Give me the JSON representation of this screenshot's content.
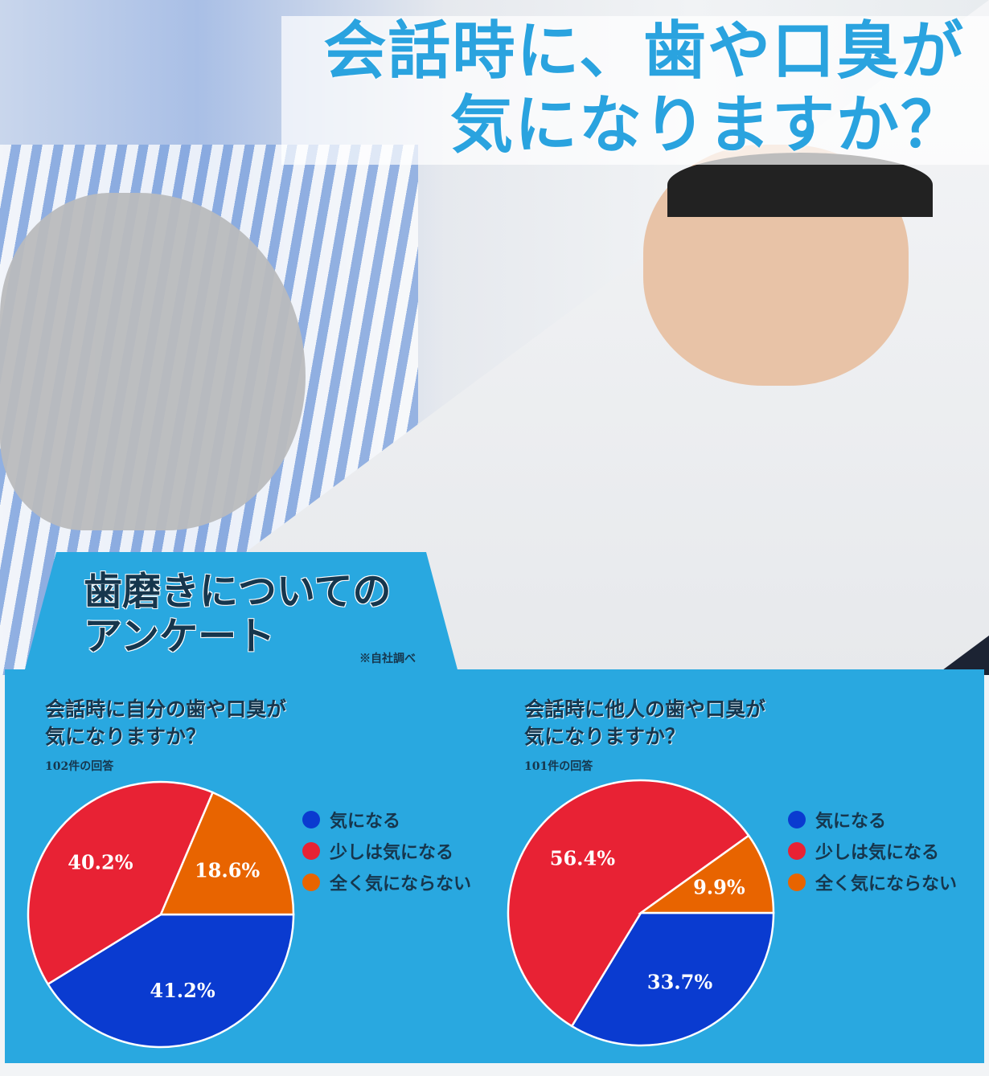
{
  "headline": {
    "line1": "会話時に、歯や口臭が",
    "line2": "気になりますか？"
  },
  "survey": {
    "title_line1": "歯磨きについての",
    "title_line2": "アンケート",
    "source": "※自社調べ"
  },
  "colors": {
    "blue": "#0a3bd0",
    "red": "#e82234",
    "orange": "#e86400",
    "panel": "#29a8e0",
    "title": "#2aa3df"
  },
  "legend": [
    "気になる",
    "少しは気になる",
    "全く気にならない"
  ],
  "chart_data": [
    {
      "type": "pie",
      "title_line1": "会話時に自分の歯や口臭が",
      "title_line2": "気になりますか？",
      "subtitle": "102件の回答",
      "categories": [
        "気になる",
        "少しは気になる",
        "全く気にならない"
      ],
      "values": [
        41.2,
        40.2,
        18.6
      ],
      "labels": [
        "41.2%",
        "40.2%",
        "18.6%"
      ],
      "legend_placement": "right"
    },
    {
      "type": "pie",
      "title_line1": "会話時に他人の歯や口臭が",
      "title_line2": "気になりますか？",
      "subtitle": "101件の回答",
      "categories": [
        "気になる",
        "少しは気になる",
        "全く気にならない"
      ],
      "values": [
        33.7,
        56.4,
        9.9
      ],
      "labels": [
        "33.7%",
        "56.4%",
        "9.9%"
      ],
      "legend_placement": "right"
    }
  ]
}
